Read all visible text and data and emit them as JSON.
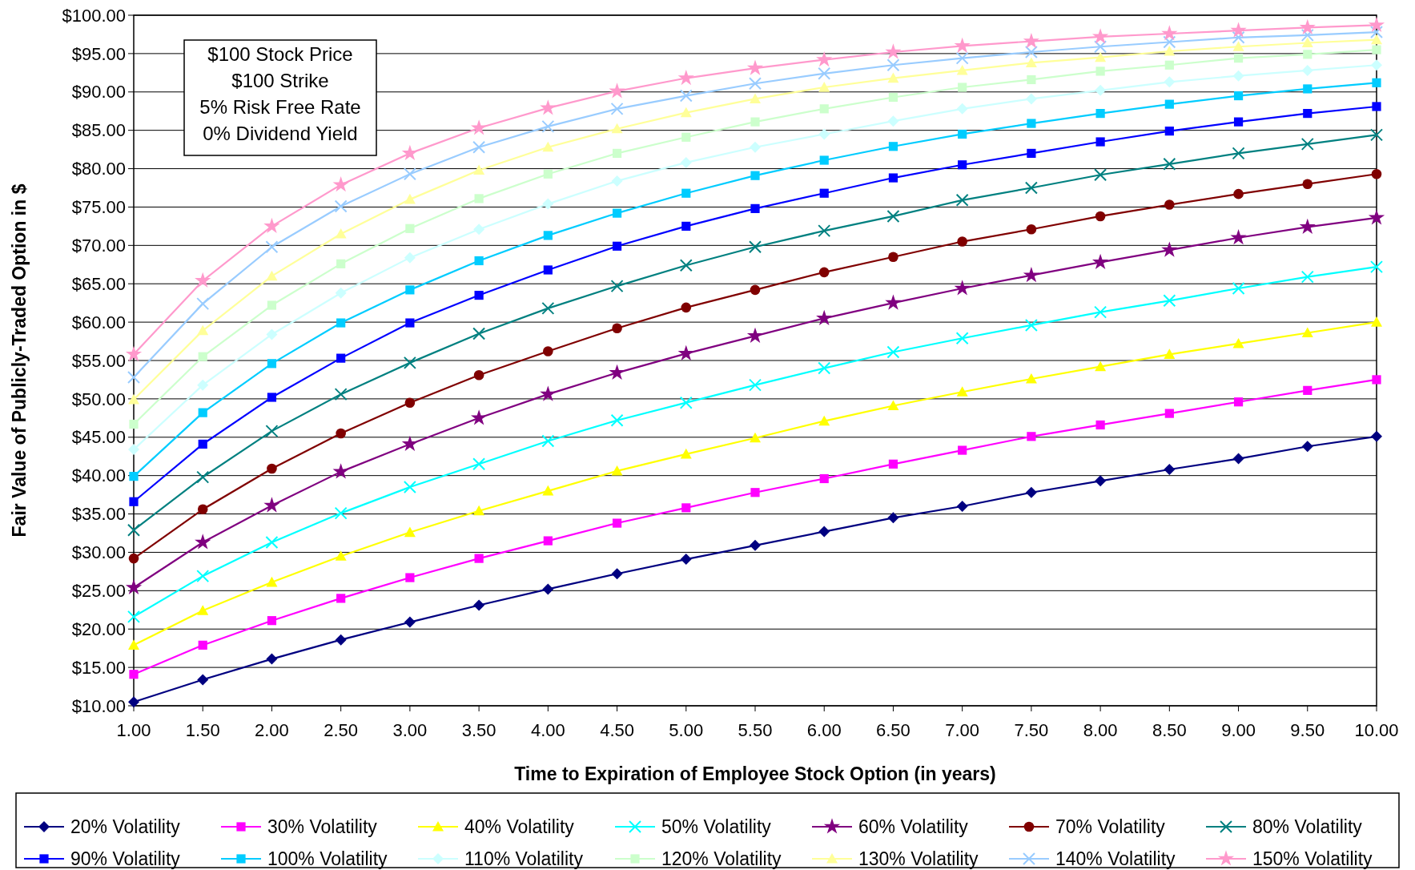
{
  "chart_data": {
    "type": "line",
    "xlabel": "Time to Expiration of Employee Stock Option (in years)",
    "ylabel": "Fair Value of Publicly-Traded Option in $",
    "categories": [
      "1.00",
      "1.50",
      "2.00",
      "2.50",
      "3.00",
      "3.50",
      "4.00",
      "4.50",
      "5.00",
      "5.50",
      "6.00",
      "6.50",
      "7.00",
      "7.50",
      "8.00",
      "8.50",
      "9.00",
      "9.50",
      "10.00"
    ],
    "ylim": [
      10,
      100
    ],
    "yticks": [
      {
        "value": 10,
        "label": "$10.00"
      },
      {
        "value": 15,
        "label": "$15.00"
      },
      {
        "value": 20,
        "label": "$20.00"
      },
      {
        "value": 25,
        "label": "$25.00"
      },
      {
        "value": 30,
        "label": "$30.00"
      },
      {
        "value": 35,
        "label": "$35.00"
      },
      {
        "value": 40,
        "label": "$40.00"
      },
      {
        "value": 45,
        "label": "$45.00"
      },
      {
        "value": 50,
        "label": "$50.00"
      },
      {
        "value": 55,
        "label": "$55.00"
      },
      {
        "value": 60,
        "label": "$60.00"
      },
      {
        "value": 65,
        "label": "$65.00"
      },
      {
        "value": 70,
        "label": "$70.00"
      },
      {
        "value": 75,
        "label": "$75.00"
      },
      {
        "value": 80,
        "label": "$80.00"
      },
      {
        "value": 85,
        "label": "$85.00"
      },
      {
        "value": 90,
        "label": "$90.00"
      },
      {
        "value": 95,
        "label": "$95.00"
      },
      {
        "value": 100,
        "label": "$100.00"
      }
    ],
    "grid": "y",
    "legend": "bottom",
    "line_style": "solid",
    "annotations": [
      "$100 Stock Price",
      "$100 Strike",
      "5% Risk Free Rate",
      "0% Dividend Yield"
    ],
    "series": [
      {
        "name": "20% Volatility",
        "color": "#000080",
        "marker": "diamond",
        "values": [
          10.5,
          13.4,
          16.1,
          18.6,
          20.9,
          23.1,
          25.2,
          27.2,
          29.1,
          30.9,
          32.7,
          34.5,
          36.0,
          37.8,
          39.3,
          40.8,
          42.2,
          43.8,
          45.1
        ]
      },
      {
        "name": "30% Volatility",
        "color": "#ff00ff",
        "marker": "square",
        "values": [
          14.1,
          17.9,
          21.1,
          24.0,
          26.7,
          29.2,
          31.5,
          33.8,
          35.8,
          37.8,
          39.6,
          41.5,
          43.3,
          45.1,
          46.6,
          48.1,
          49.6,
          51.1,
          52.5
        ]
      },
      {
        "name": "40% Volatility",
        "color": "#ffff00",
        "marker": "triangle",
        "values": [
          17.9,
          22.4,
          26.1,
          29.5,
          32.6,
          35.4,
          38.0,
          40.6,
          42.8,
          44.9,
          47.1,
          49.1,
          50.9,
          52.6,
          54.2,
          55.8,
          57.2,
          58.6,
          60.0
        ]
      },
      {
        "name": "50% Volatility",
        "color": "#00ffff",
        "marker": "cross",
        "values": [
          21.6,
          26.9,
          31.3,
          35.1,
          38.5,
          41.5,
          44.5,
          47.2,
          49.5,
          51.8,
          54.0,
          56.1,
          57.9,
          59.6,
          61.3,
          62.8,
          64.4,
          65.9,
          67.2
        ]
      },
      {
        "name": "60% Volatility",
        "color": "#800080",
        "marker": "star",
        "values": [
          25.4,
          31.3,
          36.1,
          40.5,
          44.1,
          47.5,
          50.6,
          53.4,
          55.9,
          58.2,
          60.5,
          62.5,
          64.4,
          66.1,
          67.8,
          69.4,
          71.0,
          72.4,
          73.6
        ]
      },
      {
        "name": "70% Volatility",
        "color": "#800000",
        "marker": "circle",
        "values": [
          29.2,
          35.6,
          40.9,
          45.5,
          49.5,
          53.1,
          56.2,
          59.2,
          61.9,
          64.2,
          66.5,
          68.5,
          70.5,
          72.1,
          73.8,
          75.3,
          76.7,
          78.0,
          79.3
        ]
      },
      {
        "name": "80% Volatility",
        "color": "#008080",
        "marker": "cross",
        "values": [
          32.9,
          39.8,
          45.8,
          50.6,
          54.7,
          58.5,
          61.8,
          64.7,
          67.4,
          69.8,
          71.9,
          73.8,
          75.9,
          77.5,
          79.2,
          80.6,
          82.0,
          83.2,
          84.4
        ]
      },
      {
        "name": "90% Volatility",
        "color": "#0000ff",
        "marker": "square",
        "values": [
          36.6,
          44.1,
          50.2,
          55.3,
          59.9,
          63.5,
          66.8,
          69.9,
          72.5,
          74.8,
          76.8,
          78.8,
          80.5,
          82.0,
          83.5,
          84.9,
          86.1,
          87.2,
          88.1
        ]
      },
      {
        "name": "100% Volatility",
        "color": "#00ccff",
        "marker": "square",
        "values": [
          39.9,
          48.2,
          54.6,
          59.9,
          64.2,
          68.0,
          71.3,
          74.2,
          76.8,
          79.1,
          81.1,
          82.9,
          84.5,
          85.9,
          87.2,
          88.4,
          89.5,
          90.4,
          91.2
        ]
      },
      {
        "name": "110% Volatility",
        "color": "#ccffff",
        "marker": "diamond",
        "values": [
          43.4,
          51.8,
          58.4,
          63.8,
          68.4,
          72.1,
          75.4,
          78.4,
          80.8,
          82.8,
          84.5,
          86.2,
          87.8,
          89.1,
          90.2,
          91.3,
          92.1,
          92.8,
          93.5
        ]
      },
      {
        "name": "120% Volatility",
        "color": "#ccffcc",
        "marker": "square",
        "values": [
          46.7,
          55.5,
          62.2,
          67.6,
          72.2,
          76.1,
          79.3,
          82.0,
          84.1,
          86.1,
          87.8,
          89.3,
          90.6,
          91.6,
          92.7,
          93.5,
          94.4,
          94.9,
          95.5
        ]
      },
      {
        "name": "130% Volatility",
        "color": "#ffff99",
        "marker": "triangle",
        "values": [
          49.9,
          58.9,
          66.0,
          71.5,
          76.0,
          79.8,
          82.8,
          85.2,
          87.3,
          89.1,
          90.6,
          91.8,
          92.8,
          93.8,
          94.5,
          95.3,
          95.9,
          96.4,
          96.8
        ]
      },
      {
        "name": "140% Volatility",
        "color": "#99ccff",
        "marker": "cross",
        "values": [
          52.8,
          62.4,
          69.8,
          75.1,
          79.3,
          82.8,
          85.5,
          87.8,
          89.5,
          91.1,
          92.4,
          93.5,
          94.4,
          95.2,
          95.9,
          96.5,
          97.1,
          97.4,
          97.8
        ]
      },
      {
        "name": "150% Volatility",
        "color": "#ff99cc",
        "marker": "star",
        "values": [
          55.8,
          65.4,
          72.5,
          77.9,
          82.0,
          85.3,
          87.9,
          90.1,
          91.8,
          93.1,
          94.2,
          95.2,
          96.0,
          96.6,
          97.2,
          97.6,
          98.0,
          98.4,
          98.7
        ]
      }
    ]
  }
}
